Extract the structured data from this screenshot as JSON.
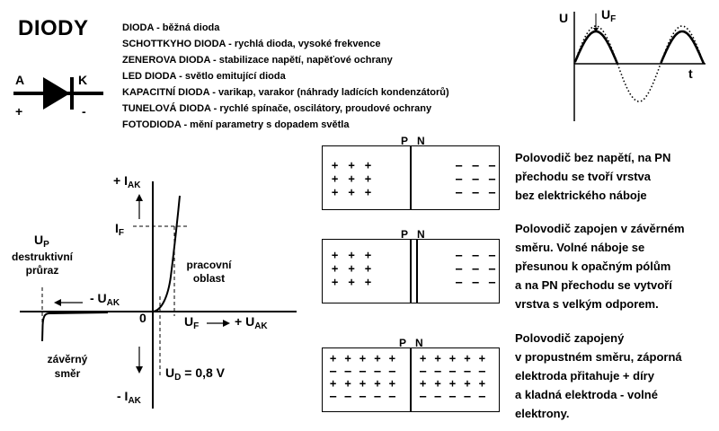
{
  "title": "DIODY",
  "diode_types": [
    "DIODA - běžná dioda",
    "SCHOTTKYHO DIODA - rychlá dioda, vysoké frekvence",
    "ZENEROVA DIODA - stabilizace napětí, napěťové ochrany",
    "LED DIODA - světlo emitující dioda",
    "KAPACITNÍ DIODA - varikap, varakor (náhrady ladících kondenzátorů)",
    "TUNELOVÁ DIODA - rychlé spínače, oscilátory, proudové ochrany",
    "FOTODIODA - mění parametry s dopadem světla"
  ],
  "symbol": {
    "anode": "A",
    "cathode": "K",
    "plus": "+",
    "minus": "-"
  },
  "waveform": {
    "y_label": "U",
    "uf_main": "U",
    "uf_sub": "F",
    "x_label": "t"
  },
  "va_curve": {
    "plus_iak": "+ I",
    "iak_sub": "AK",
    "minus_iak": "- I",
    "if_main": "I",
    "if_sub": "F",
    "up_main": "U",
    "up_sub": "P",
    "breakdown_line1": "destruktivní",
    "breakdown_line2": "průraz",
    "working_line1": "pracovní",
    "working_line2": "oblast",
    "minus_uak": "- U",
    "uak_sub": "AK",
    "plus_uak": "+ U",
    "origin": "0",
    "uf_main": "U",
    "uf_sub": "F",
    "reverse_line1": "závěrný",
    "reverse_line2": "směr",
    "ud_main": "U",
    "ud_sub": "D",
    "ud_value": " = 0,8 V"
  },
  "junctions": [
    {
      "p": "P",
      "n": "N",
      "p_signs": "+ + +\n+ + +\n+ + +",
      "n_signs": "– – –\n– – –\n– – –",
      "description": [
        "Polovodič bez napětí, na PN",
        "přechodu se tvoří vrstva",
        "bez elektrického  náboje"
      ]
    },
    {
      "p": "P",
      "n": "N",
      "p_signs": "+ + +\n+ + +\n+ + +",
      "n_signs": "– – –\n– – –\n– – –",
      "description": [
        "Polovodič zapojen v závěrném",
        "směru. Volné náboje se",
        "přesunou k opačným pólům",
        "a na PN přechodu se vytvoří",
        "vrstva s velkým odporem."
      ]
    },
    {
      "p": "P",
      "n": "N",
      "p_signs": "+ + + + +\n– – – – –\n+ + + + +\n– – – – –",
      "n_signs": "+ + + + +\n– – – – –\n+ + + + +\n– – – – –",
      "description": [
        "Polovodič zapojený",
        " v propustném směru, záporná",
        "elektroda přitahuje + díry",
        "a kladná elektroda - volné",
        "elektrony."
      ]
    }
  ]
}
